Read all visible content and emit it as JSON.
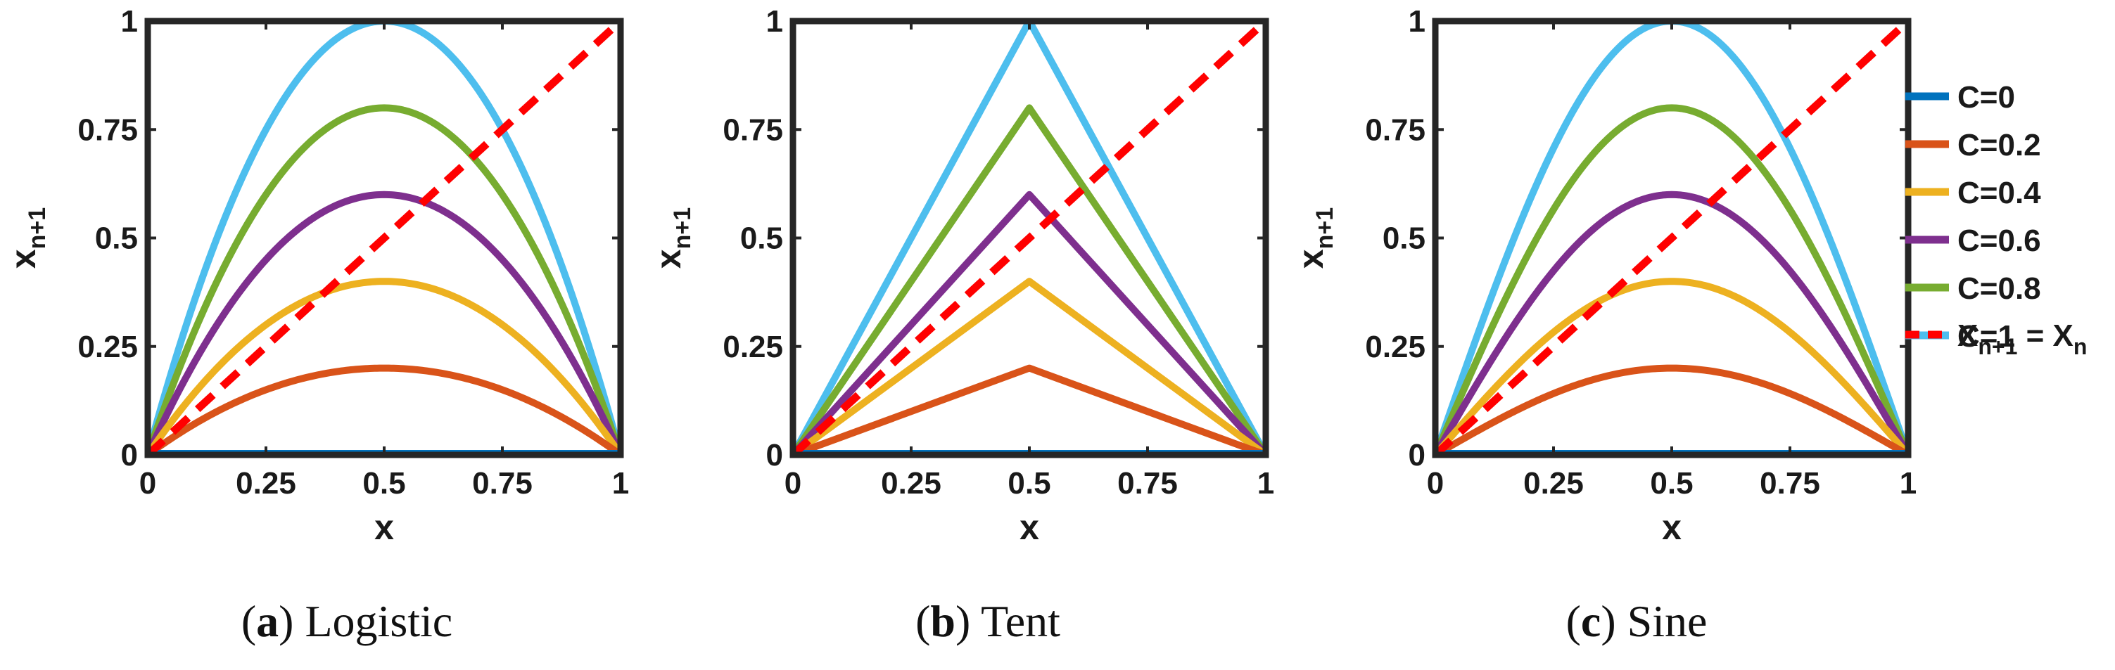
{
  "chart_data": [
    {
      "type": "line",
      "map": "logistic",
      "caption_tag": "a",
      "caption_text": "Logistic",
      "xlabel": "x",
      "ylabel_main": "x",
      "ylabel_sub": "n+1",
      "xlim": [
        0,
        1
      ],
      "ylim": [
        0,
        1
      ],
      "xticks": [
        "0",
        "0.25",
        "0.5",
        "0.75",
        "1"
      ],
      "yticks": [
        "0",
        "0.25",
        "0.5",
        "0.75",
        "1"
      ],
      "series": [
        {
          "name": "C=0",
          "c": 0,
          "color": "#0072BD"
        },
        {
          "name": "C=0.2",
          "c": 0.2,
          "color": "#D95319"
        },
        {
          "name": "C=0.4",
          "c": 0.4,
          "color": "#EDB120"
        },
        {
          "name": "C=0.6",
          "c": 0.6,
          "color": "#7E2F8E"
        },
        {
          "name": "C=0.8",
          "c": 0.8,
          "color": "#77AC30"
        },
        {
          "name": "C=1",
          "c": 1,
          "color": "#4DBEEE"
        }
      ],
      "diagonal": {
        "x": [
          0,
          1
        ],
        "y": [
          0,
          1
        ],
        "color": "#FF0000",
        "style": "dashed"
      }
    },
    {
      "type": "line",
      "map": "tent",
      "caption_tag": "b",
      "caption_text": "Tent",
      "xlabel": "x",
      "ylabel_main": "x",
      "ylabel_sub": "n+1",
      "xlim": [
        0,
        1
      ],
      "ylim": [
        0,
        1
      ],
      "xticks": [
        "0",
        "0.25",
        "0.5",
        "0.75",
        "1"
      ],
      "yticks": [
        "0",
        "0.25",
        "0.5",
        "0.75",
        "1"
      ],
      "series": [
        {
          "name": "C=0",
          "c": 0,
          "color": "#0072BD"
        },
        {
          "name": "C=0.2",
          "c": 0.2,
          "color": "#D95319"
        },
        {
          "name": "C=0.4",
          "c": 0.4,
          "color": "#EDB120"
        },
        {
          "name": "C=0.6",
          "c": 0.6,
          "color": "#7E2F8E"
        },
        {
          "name": "C=0.8",
          "c": 0.8,
          "color": "#77AC30"
        },
        {
          "name": "C=1",
          "c": 1,
          "color": "#4DBEEE"
        }
      ],
      "diagonal": {
        "x": [
          0,
          1
        ],
        "y": [
          0,
          1
        ],
        "color": "#FF0000",
        "style": "dashed"
      }
    },
    {
      "type": "line",
      "map": "sine",
      "caption_tag": "c",
      "caption_text": "Sine",
      "xlabel": "x",
      "ylabel_main": "x",
      "ylabel_sub": "n+1",
      "xlim": [
        0,
        1
      ],
      "ylim": [
        0,
        1
      ],
      "xticks": [
        "0",
        "0.25",
        "0.5",
        "0.75",
        "1"
      ],
      "yticks": [
        "0",
        "0.25",
        "0.5",
        "0.75",
        "1"
      ],
      "series": [
        {
          "name": "C=0",
          "c": 0,
          "color": "#0072BD"
        },
        {
          "name": "C=0.2",
          "c": 0.2,
          "color": "#D95319"
        },
        {
          "name": "C=0.4",
          "c": 0.4,
          "color": "#EDB120"
        },
        {
          "name": "C=0.6",
          "c": 0.6,
          "color": "#7E2F8E"
        },
        {
          "name": "C=0.8",
          "c": 0.8,
          "color": "#77AC30"
        },
        {
          "name": "C=1",
          "c": 1,
          "color": "#4DBEEE"
        }
      ],
      "diagonal": {
        "x": [
          0,
          1
        ],
        "y": [
          0,
          1
        ],
        "color": "#FF0000",
        "style": "dashed"
      }
    }
  ],
  "legend": {
    "placement": "right",
    "entries": [
      {
        "label": "C=0",
        "color": "#0072BD",
        "style": "solid"
      },
      {
        "label": "C=0.2",
        "color": "#D95319",
        "style": "solid"
      },
      {
        "label": "C=0.4",
        "color": "#EDB120",
        "style": "solid"
      },
      {
        "label": "C=0.6",
        "color": "#7E2F8E",
        "style": "solid"
      },
      {
        "label": "C=0.8",
        "color": "#77AC30",
        "style": "solid"
      },
      {
        "label": "C=1",
        "color": "#4DBEEE",
        "style": "solid"
      }
    ],
    "diagonal_entry": {
      "lhs_main": "X",
      "lhs_sub": "n+1",
      "equals": " = ",
      "rhs_main": "X",
      "rhs_sub": "n",
      "color": "#FF0000",
      "style": "dashed"
    }
  }
}
